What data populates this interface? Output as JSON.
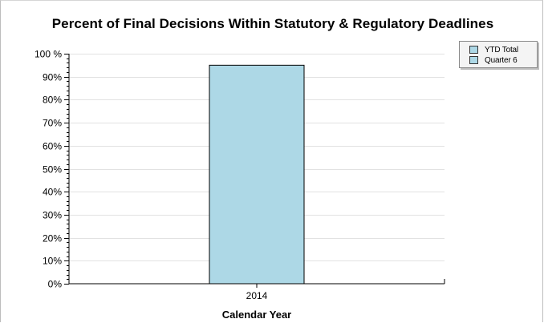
{
  "chart_data": {
    "type": "bar",
    "title": "Percent of Final Decisions Within Statutory & Regulatory Deadlines",
    "xlabel": "Calendar Year",
    "ylabel": "",
    "categories": [
      "2014"
    ],
    "series": [
      {
        "name": "YTD Total",
        "values": [
          null
        ],
        "color": "#add8e6"
      },
      {
        "name": "Quarter 6",
        "values": [
          95
        ],
        "color": "#add8e6"
      }
    ],
    "ylim": [
      0,
      100
    ],
    "yticks": [
      "0%",
      "10%",
      "20%",
      "30%",
      "40%",
      "50%",
      "60%",
      "70%",
      "80%",
      "90%",
      "100 %"
    ],
    "ytick_values": [
      0,
      10,
      20,
      30,
      40,
      50,
      60,
      70,
      80,
      90,
      100
    ],
    "grid": true,
    "legend_position": "top-right"
  }
}
